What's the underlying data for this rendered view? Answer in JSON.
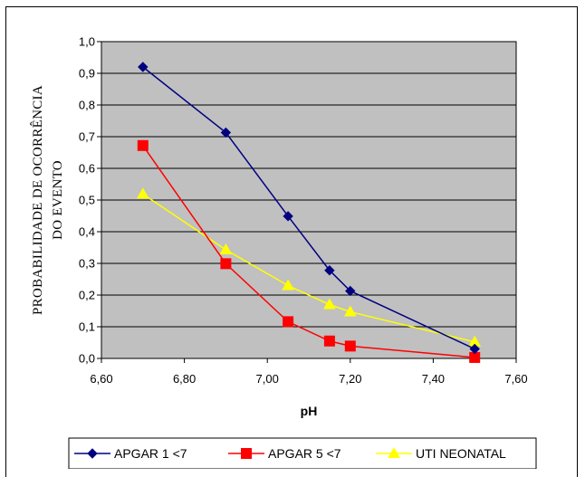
{
  "chart_data": {
    "type": "line",
    "title": "",
    "xlabel": "pH",
    "ylabel_lines": [
      "PROBABILIDADE DE OCORRÊNCIA",
      "DO EVENTO"
    ],
    "xlim": [
      6.6,
      7.6
    ],
    "ylim": [
      0.0,
      1.0
    ],
    "x_ticks": [
      "6,60",
      "6,80",
      "7,00",
      "7,20",
      "7,40",
      "7,60"
    ],
    "y_ticks": [
      "0,0",
      "0,1",
      "0,2",
      "0,3",
      "0,4",
      "0,5",
      "0,6",
      "0,7",
      "0,8",
      "0,9",
      "1,0"
    ],
    "grid": true,
    "legend_position": "bottom",
    "plot_background": "#c0c0c0",
    "series": [
      {
        "name": "APGAR 1 <7",
        "color": "#000080",
        "marker": "diamond",
        "x": [
          6.7,
          6.9,
          7.05,
          7.15,
          7.2,
          7.5
        ],
        "y": [
          0.92,
          0.713,
          0.449,
          0.278,
          0.213,
          0.03
        ]
      },
      {
        "name": "APGAR 5 <7",
        "color": "#ff0000",
        "marker": "square",
        "x": [
          6.7,
          6.9,
          7.05,
          7.15,
          7.2,
          7.5
        ],
        "y": [
          0.672,
          0.299,
          0.116,
          0.055,
          0.039,
          0.003
        ]
      },
      {
        "name": "UTI NEONATAL",
        "color": "#ffff00",
        "marker": "triangle",
        "x": [
          6.7,
          6.9,
          7.05,
          7.15,
          7.2,
          7.5
        ],
        "y": [
          0.519,
          0.343,
          0.23,
          0.17,
          0.147,
          0.052
        ]
      }
    ]
  }
}
